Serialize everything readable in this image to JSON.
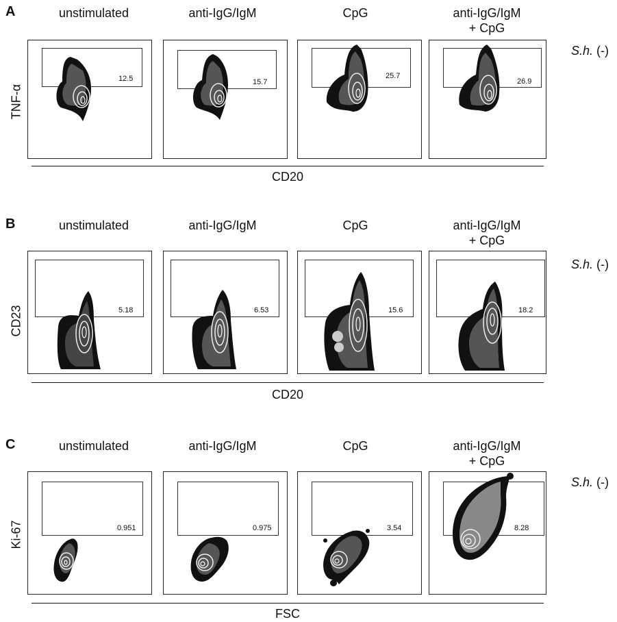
{
  "columns": [
    "unstimulated",
    "anti-IgG/IgM",
    "CpG",
    "anti-IgG/IgM",
    "+ CpG"
  ],
  "sh_label": {
    "italic": "S.h.",
    "suffix": "(-)"
  },
  "rows": [
    {
      "letter": "A",
      "ylabel": "TNF-α",
      "xlabel": "CD20",
      "values": [
        "12.5",
        "15.7",
        "25.7",
        "26.9"
      ]
    },
    {
      "letter": "B",
      "ylabel": "CD23",
      "xlabel": "CD20",
      "values": [
        "5.18",
        "6.53",
        "15.6",
        "18.2"
      ]
    },
    {
      "letter": "C",
      "ylabel": "Ki-67",
      "xlabel": "FSC",
      "values": [
        "0.951",
        "0.975",
        "3.54",
        "8.28"
      ]
    }
  ]
}
